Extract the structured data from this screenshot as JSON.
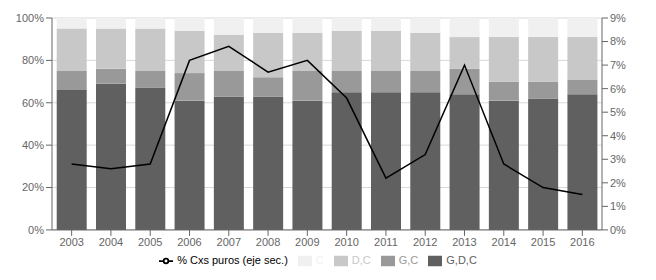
{
  "chart_data": {
    "type": "bar",
    "stacked": true,
    "grid": true,
    "legend": "bottom",
    "categories": [
      "2003",
      "2004",
      "2005",
      "2006",
      "2007",
      "2008",
      "2009",
      "2010",
      "2011",
      "2012",
      "2013",
      "2014",
      "2015",
      "2016"
    ],
    "series": [
      {
        "name": "G,D,C",
        "color": "#606060",
        "values": [
          0.66,
          0.69,
          0.67,
          0.61,
          0.63,
          0.63,
          0.61,
          0.65,
          0.65,
          0.65,
          0.64,
          0.61,
          0.62,
          0.64
        ]
      },
      {
        "name": "G,C",
        "color": "#999999",
        "values": [
          0.09,
          0.07,
          0.08,
          0.13,
          0.12,
          0.09,
          0.14,
          0.1,
          0.1,
          0.1,
          0.12,
          0.09,
          0.08,
          0.07
        ]
      },
      {
        "name": "D,C",
        "color": "#c8c8c8",
        "values": [
          0.2,
          0.19,
          0.2,
          0.2,
          0.17,
          0.21,
          0.18,
          0.19,
          0.19,
          0.18,
          0.15,
          0.21,
          0.21,
          0.2
        ]
      },
      {
        "name": "C",
        "color": "#f0f0f0",
        "values": [
          0.05,
          0.05,
          0.05,
          0.06,
          0.08,
          0.07,
          0.07,
          0.06,
          0.06,
          0.07,
          0.09,
          0.09,
          0.09,
          0.09
        ]
      },
      {
        "name": "% Cxs puros (eje sec.)",
        "type": "line",
        "axis": "y2",
        "color": "#000000",
        "values": [
          2.8,
          2.6,
          2.8,
          7.2,
          7.8,
          6.7,
          7.2,
          5.6,
          2.2,
          3.2,
          7.0,
          2.8,
          1.8,
          1.5
        ]
      }
    ],
    "ylim": [
      0,
      1.0
    ],
    "yticks": [
      {
        "value": 0,
        "label": "0%"
      },
      {
        "value": 0.2,
        "label": "20%"
      },
      {
        "value": 0.4,
        "label": "40%"
      },
      {
        "value": 0.6,
        "label": "60%"
      },
      {
        "value": 0.8,
        "label": "80%"
      },
      {
        "value": 1.0,
        "label": "100%"
      }
    ],
    "y2lim": [
      0,
      9
    ],
    "y2ticks": [
      {
        "value": 0,
        "label": "0%"
      },
      {
        "value": 1,
        "label": "1%"
      },
      {
        "value": 2,
        "label": "2%"
      },
      {
        "value": 3,
        "label": "3%"
      },
      {
        "value": 4,
        "label": "4%"
      },
      {
        "value": 5,
        "label": "5%"
      },
      {
        "value": 6,
        "label": "6%"
      },
      {
        "value": 7,
        "label": "7%"
      },
      {
        "value": 8,
        "label": "8%"
      },
      {
        "value": 9,
        "label": "9%"
      }
    ]
  }
}
